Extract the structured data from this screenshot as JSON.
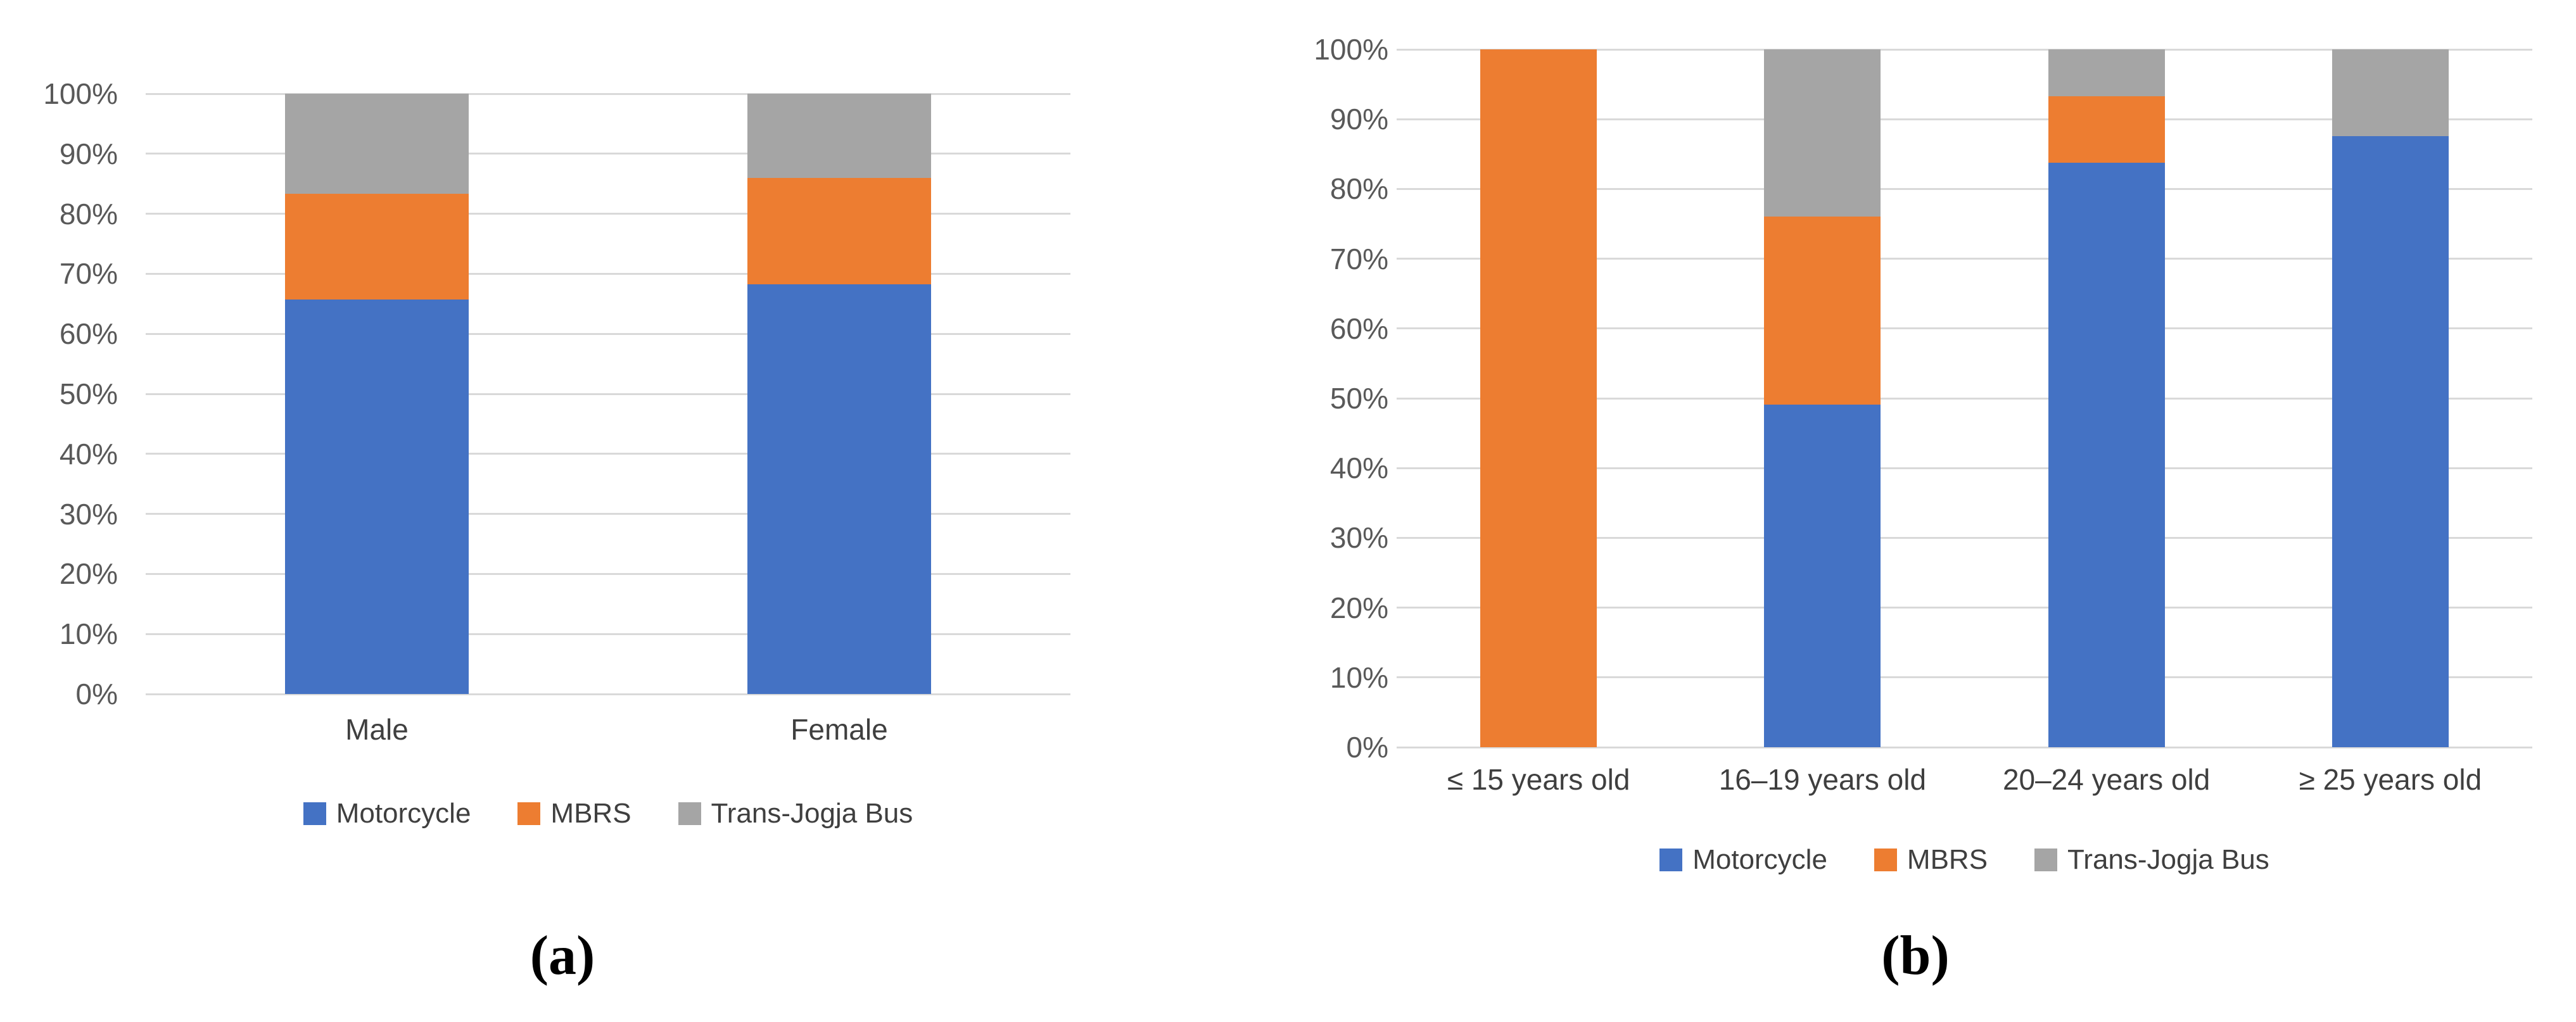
{
  "chart_data": [
    {
      "id": "a",
      "type": "bar",
      "subtype": "stacked-100-percent-column",
      "caption": "(a)",
      "categories": [
        "Male",
        "Female"
      ],
      "series": [
        {
          "name": "Motorcycle",
          "color": "#4472C4",
          "values": [
            65.7,
            68.2
          ]
        },
        {
          "name": "MBRS",
          "color": "#ED7D31",
          "values": [
            17.6,
            17.8
          ]
        },
        {
          "name": "Trans-Jogja Bus",
          "color": "#A5A5A5",
          "values": [
            16.7,
            14.0
          ]
        }
      ],
      "ylabel": "",
      "xlabel": "",
      "ylim": [
        0,
        100
      ],
      "y_tick_step": 10,
      "y_tick_labels": [
        "0%",
        "10%",
        "20%",
        "30%",
        "40%",
        "50%",
        "60%",
        "70%",
        "80%",
        "90%",
        "100%"
      ],
      "grid": true,
      "legend_position": "bottom"
    },
    {
      "id": "b",
      "type": "bar",
      "subtype": "stacked-100-percent-column",
      "caption": "(b)",
      "categories": [
        "≤ 15 years old",
        "16–19 years old",
        "20–24 years old",
        "≥ 25 years old"
      ],
      "series": [
        {
          "name": "Motorcycle",
          "color": "#4472C4",
          "values": [
            0,
            49.1,
            83.8,
            87.6
          ]
        },
        {
          "name": "MBRS",
          "color": "#ED7D31",
          "values": [
            100,
            26.9,
            9.5,
            0
          ]
        },
        {
          "name": "Trans-Jogja Bus",
          "color": "#A5A5A5",
          "values": [
            0,
            24.0,
            6.7,
            12.4
          ]
        }
      ],
      "ylabel": "",
      "xlabel": "",
      "ylim": [
        0,
        100
      ],
      "y_tick_step": 10,
      "y_tick_labels": [
        "0%",
        "10%",
        "20%",
        "30%",
        "40%",
        "50%",
        "60%",
        "70%",
        "80%",
        "90%",
        "100%"
      ],
      "grid": true,
      "legend_position": "bottom"
    }
  ],
  "colors": {
    "gridline": "#d9d9d9",
    "tick_text": "#595959",
    "label_text": "#3f3f3f",
    "caption_text": "#000000",
    "background": "#ffffff"
  }
}
